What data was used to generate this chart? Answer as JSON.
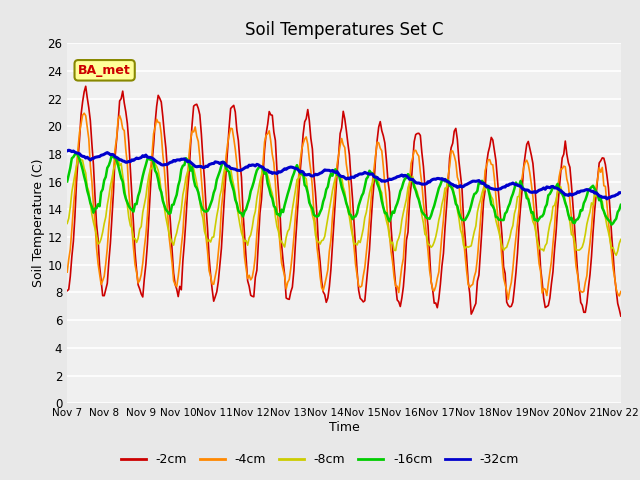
{
  "title": "Soil Temperatures Set C",
  "xlabel": "Time",
  "ylabel": "Soil Temperature (C)",
  "annotation": "BA_met",
  "ylim": [
    0,
    26
  ],
  "yticks": [
    0,
    2,
    4,
    6,
    8,
    10,
    12,
    14,
    16,
    18,
    20,
    22,
    24,
    26
  ],
  "xtick_labels": [
    "Nov 7",
    "Nov 8",
    "Nov 9",
    "Nov 10",
    "Nov 11",
    "Nov 12",
    "Nov 13",
    "Nov 14",
    "Nov 15",
    "Nov 16",
    "Nov 17",
    "Nov 18",
    "Nov 19",
    "Nov 20",
    "Nov 21",
    "Nov 22"
  ],
  "colors": {
    "-2cm": "#cc0000",
    "-4cm": "#ff8800",
    "-8cm": "#cccc00",
    "-16cm": "#00cc00",
    "-32cm": "#0000cc"
  },
  "line_widths": {
    "-2cm": 1.2,
    "-4cm": 1.2,
    "-8cm": 1.2,
    "-16cm": 1.8,
    "-32cm": 2.2
  },
  "bg_color": "#e8e8e8",
  "plot_bg_color": "#f0f0f0",
  "grid_color": "#ffffff",
  "annotation_bg": "#ffff99",
  "annotation_border": "#888800",
  "annotation_text_color": "#cc0000",
  "legend_labels": [
    "-2cm",
    "-4cm",
    "-8cm",
    "-16cm",
    "-32cm"
  ]
}
